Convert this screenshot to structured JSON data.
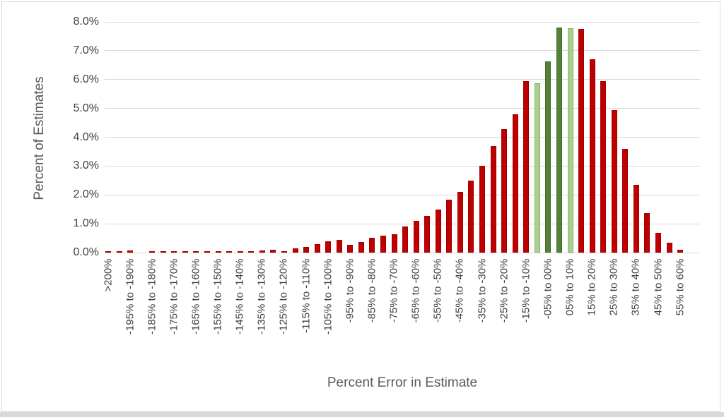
{
  "chart_data": {
    "type": "bar",
    "title": "",
    "xlabel": "Percent Error in Estimate",
    "ylabel": "Percent of Estimates",
    "ylim": [
      0,
      8
    ],
    "y_tick_labels": [
      "0.0%",
      "1.0%",
      "2.0%",
      "3.0%",
      "4.0%",
      "5.0%",
      "6.0%",
      "7.0%",
      "8.0%"
    ],
    "grid": "horizontal",
    "legend": "none",
    "bin_width_percent": 5,
    "categories": [
      ">200%",
      "",
      "-195% to -190%",
      "",
      "-185% to -180%",
      "",
      "-175% to -170%",
      "",
      "-165% to -160%",
      "",
      "-155% to -150%",
      "",
      "-145% to -140%",
      "",
      "-135% to -130%",
      "",
      "-125% to -120%",
      "",
      "-115% to -110%",
      "",
      "-105% to -100%",
      "",
      "-95% to -90%",
      "",
      "-85% to -80%",
      "",
      "-75% to -70%",
      "",
      "-65% to -60%",
      "",
      "-55% to -50%",
      "",
      "-45% to -40%",
      "",
      "-35% to -30%",
      "",
      "-25% to -20%",
      "",
      "-15% to -10%",
      "",
      "-05% to 00%",
      "",
      "05% to 10%",
      "",
      "15% to 20%",
      "",
      "25% to 30%",
      "",
      "35% to 40%",
      "",
      "45% to 50%",
      "",
      "55% to 60%"
    ],
    "values": [
      0.05,
      0.05,
      0.07,
      0,
      0.05,
      0.05,
      0.05,
      0.05,
      0.05,
      0.06,
      0.05,
      0.06,
      0.06,
      0.06,
      0.07,
      0.11,
      0.06,
      0.14,
      0.2,
      0.3,
      0.4,
      0.44,
      0.26,
      0.36,
      0.52,
      0.58,
      0.63,
      0.91,
      1.11,
      1.27,
      1.5,
      1.84,
      2.11,
      2.5,
      3.01,
      3.7,
      4.27,
      4.79,
      5.95,
      5.88,
      6.64,
      7.8,
      7.78,
      7.75,
      6.7,
      5.95,
      4.95,
      3.6,
      2.36,
      1.37,
      0.69,
      0.34,
      0.1
    ],
    "bar_colors": {
      "default": "#C00000",
      "overrides": {
        "39": "#A9D18E",
        "40": "#538135",
        "41": "#538135",
        "42": "#A9D18E"
      }
    }
  },
  "colors": {
    "red_bar": "#C00000",
    "dark_green_bar": "#538135",
    "light_green_bar": "#A9D18E",
    "gridline": "#d9d9d9",
    "tick_text": "#404040",
    "axis_title_text": "#595959",
    "frame_border": "#d9d9d9"
  }
}
